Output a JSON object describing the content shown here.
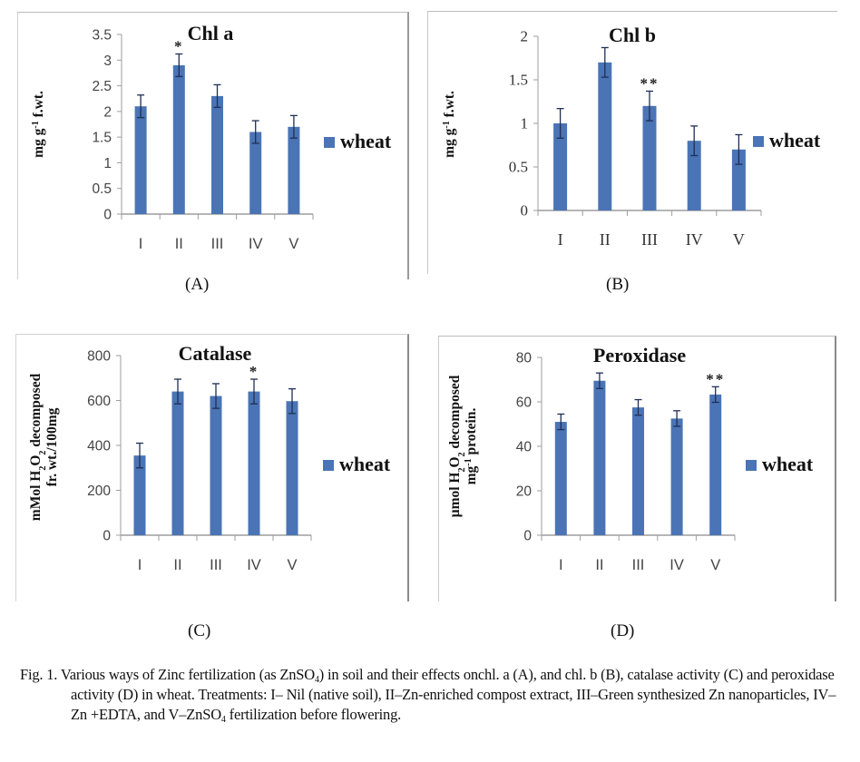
{
  "figure": {
    "panels": [
      "(A)",
      "(B)",
      "(C)",
      "(D)"
    ],
    "caption": {
      "prefix": "Fig. 1.",
      "text_1": "Various ways of Zinc fertilization (as ZnSO",
      "sub_1": "4",
      "text_2": ") in soil and their effects onchl. a (A), and chl. b (B), catalase activity (C) and peroxidase activity (D) in wheat. Treatments: I– Nil (native soil), II–Zn-enriched compost extract, III–Green synthesized Zn nanoparticles, IV–Zn +EDTA, and V–ZnSO",
      "sub_2": "4",
      "text_3": " fertilization before flowering."
    }
  },
  "colors": {
    "bar": "#4a74b5",
    "axis": "#9e9e9e",
    "error_bar": "#1f2f55",
    "text": "#111111"
  },
  "chart_data": [
    {
      "type": "bar",
      "title": "Chl a",
      "xlabel": "",
      "ylabel": "mg g-1 f.wt.",
      "categories": [
        "I",
        "II",
        "III",
        "IV",
        "V"
      ],
      "series": [
        {
          "name": "wheat",
          "values": [
            2.1,
            2.9,
            2.3,
            1.6,
            1.7
          ],
          "errors": [
            0.22,
            0.22,
            0.22,
            0.22,
            0.22
          ]
        }
      ],
      "annotations": [
        "",
        "*",
        "",
        "",
        ""
      ],
      "ylim": [
        0,
        3.5
      ],
      "yticks": [
        "0",
        "0.5",
        "1",
        "1.5",
        "2",
        "2.5",
        "3",
        "3.5"
      ],
      "grid": false,
      "legend": "right"
    },
    {
      "type": "bar",
      "title": "Chl b",
      "xlabel": "",
      "ylabel": "mg g-1 f.wt.",
      "categories": [
        "I",
        "II",
        "III",
        "IV",
        "V"
      ],
      "series": [
        {
          "name": "wheat",
          "values": [
            1.0,
            1.7,
            1.2,
            0.8,
            0.7
          ],
          "errors": [
            0.17,
            0.17,
            0.17,
            0.17,
            0.17
          ]
        }
      ],
      "annotations": [
        "",
        "",
        "**",
        "",
        ""
      ],
      "ylim": [
        0,
        2
      ],
      "yticks": [
        "0",
        "0.5",
        "1",
        "1.5",
        "2"
      ],
      "grid": false,
      "legend": "right"
    },
    {
      "type": "bar",
      "title": "Catalase",
      "xlabel": "",
      "ylabel": "mMol H2O2 decomposed fr. wt./100mg",
      "categories": [
        "I",
        "II",
        "III",
        "IV",
        "V"
      ],
      "series": [
        {
          "name": "wheat",
          "values": [
            355,
            640,
            620,
            640,
            597
          ],
          "errors": [
            55,
            55,
            55,
            55,
            55
          ]
        }
      ],
      "annotations": [
        "",
        "",
        "",
        "*",
        ""
      ],
      "ylim": [
        0,
        800
      ],
      "yticks": [
        "0",
        "200",
        "400",
        "600",
        "800"
      ],
      "grid": false,
      "legend": "right"
    },
    {
      "type": "bar",
      "title": "Peroxidase",
      "xlabel": "",
      "ylabel": "µmol H2O2 decomposed mg-1 protein.",
      "categories": [
        "I",
        "II",
        "III",
        "IV",
        "V"
      ],
      "series": [
        {
          "name": "wheat",
          "values": [
            51,
            69.5,
            57.5,
            52.5,
            63.3
          ],
          "errors": [
            3.5,
            3.5,
            3.5,
            3.5,
            3.5
          ]
        }
      ],
      "annotations": [
        "",
        "",
        "",
        "",
        "**"
      ],
      "ylim": [
        0,
        80
      ],
      "yticks": [
        "0",
        "20",
        "40",
        "60",
        "80"
      ],
      "grid": false,
      "legend": "right"
    }
  ]
}
